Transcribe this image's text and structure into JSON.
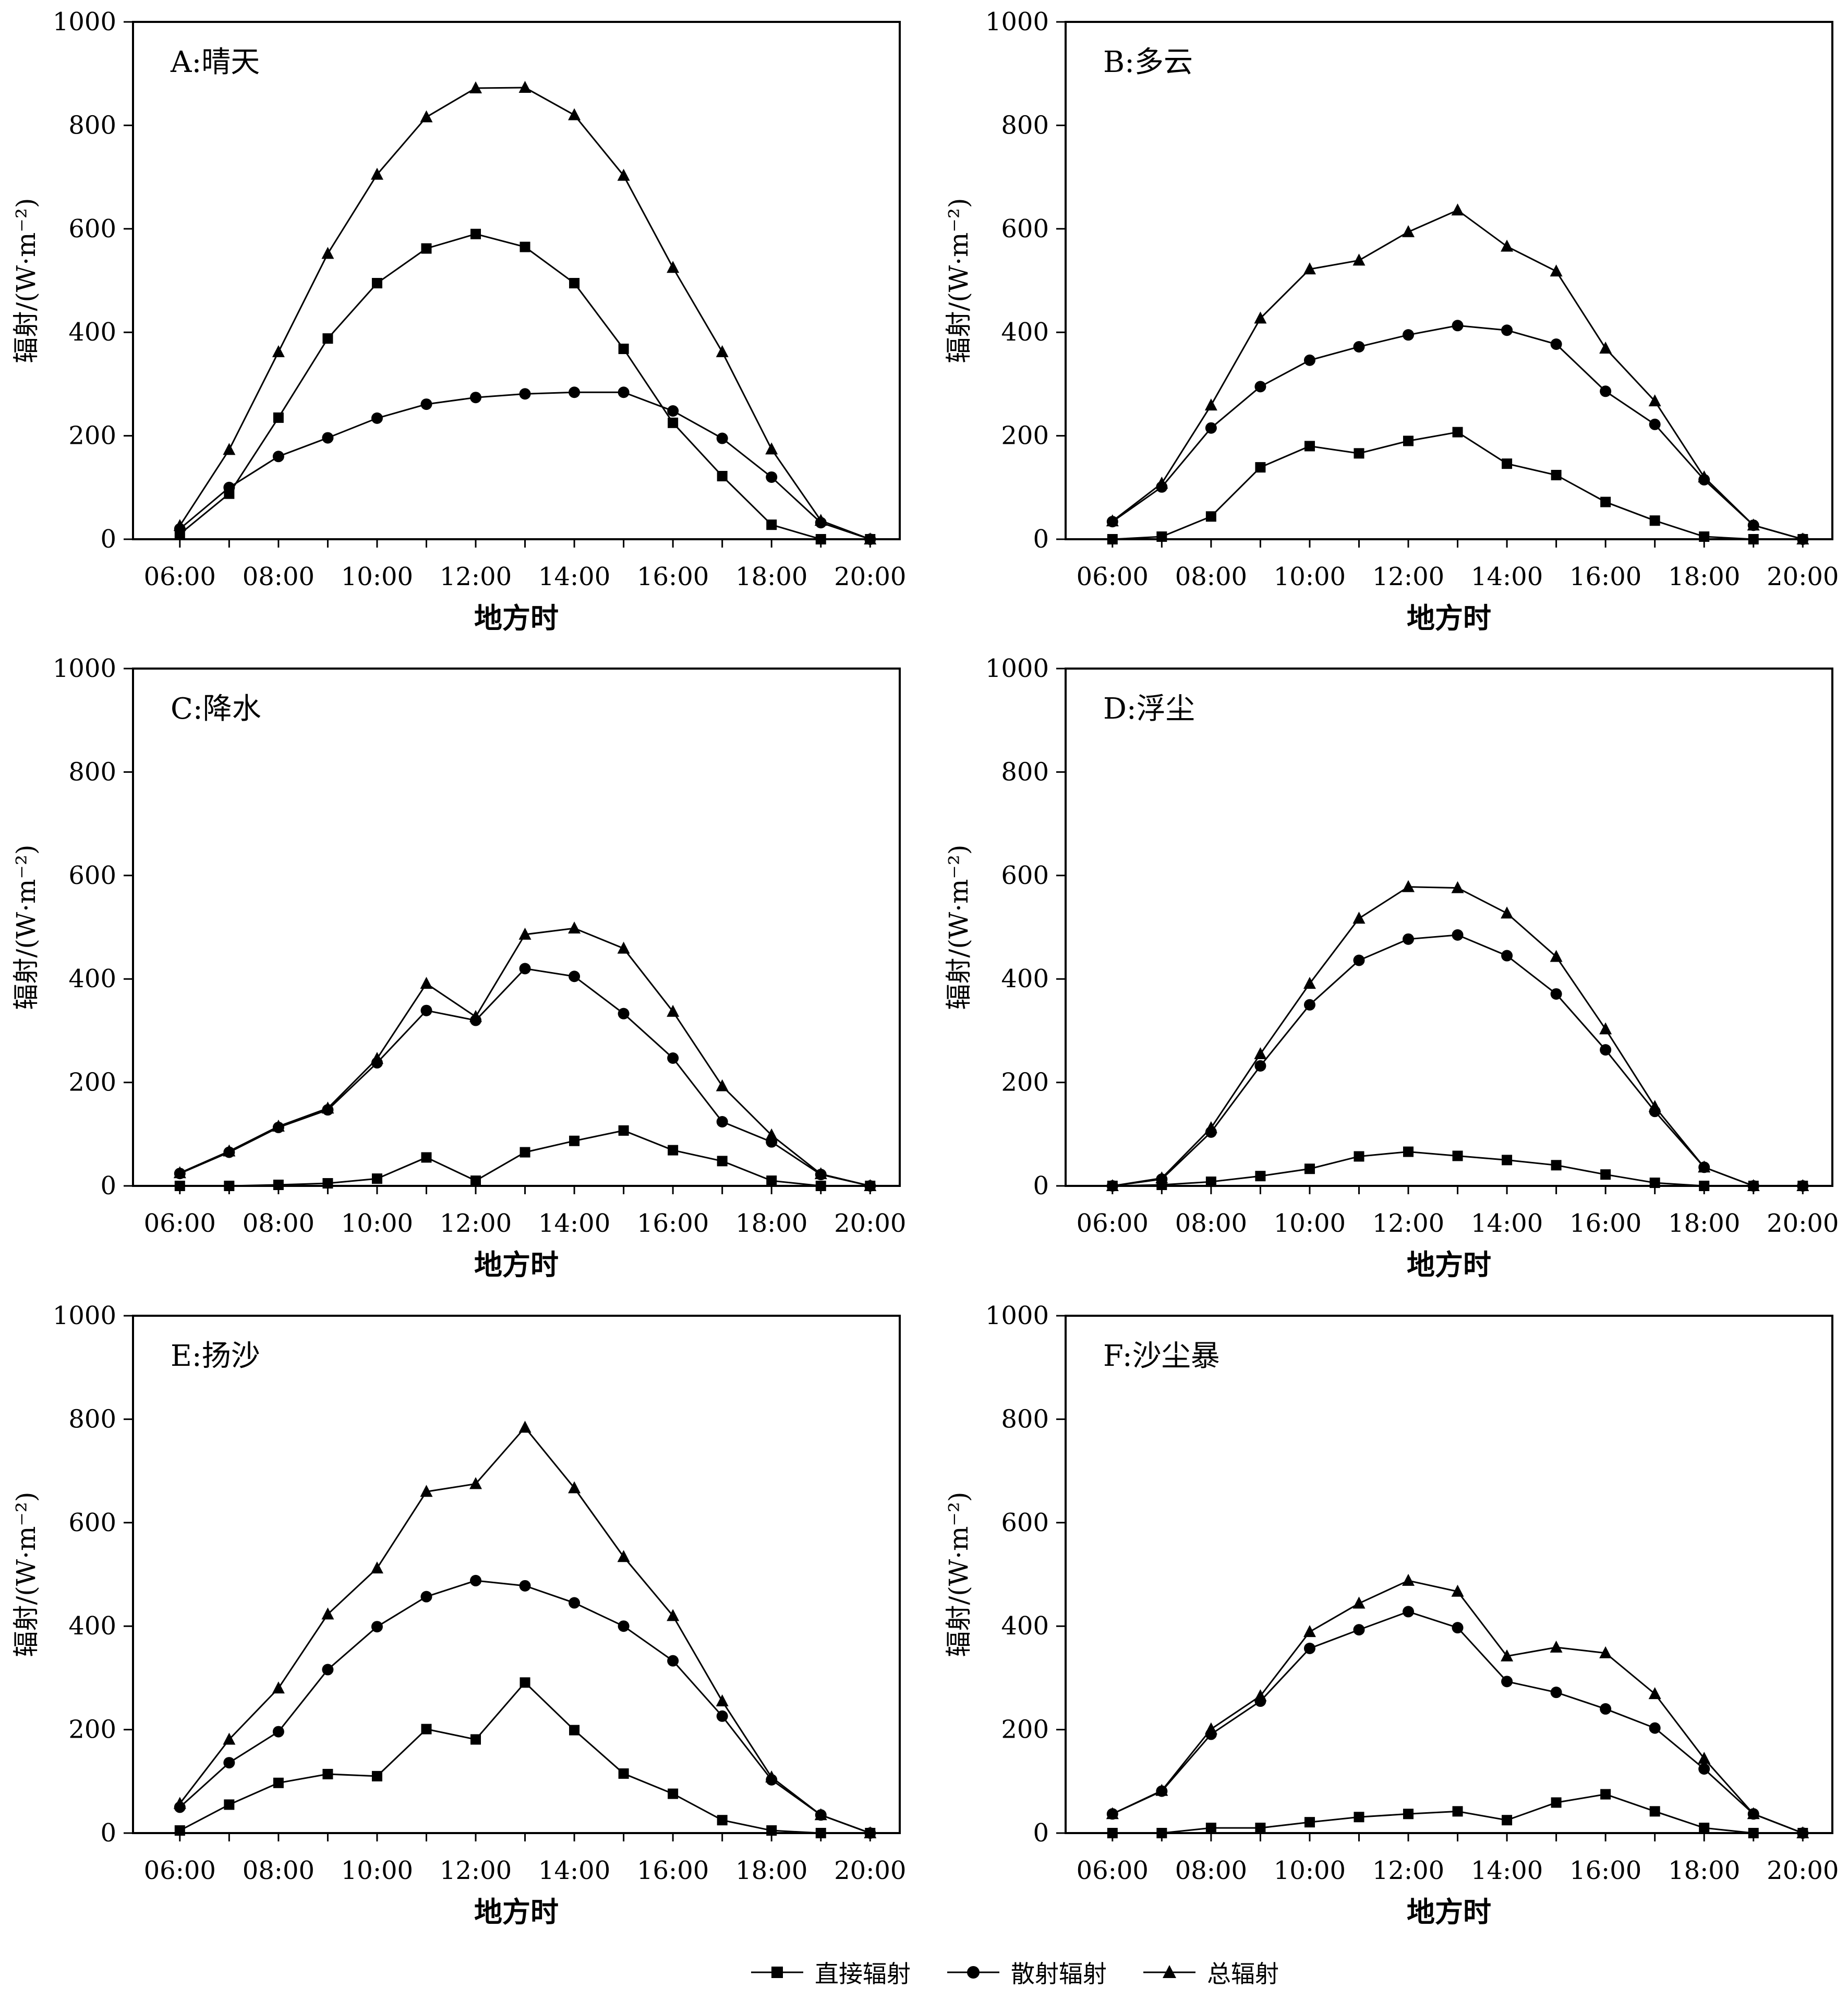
{
  "legend": {
    "direct": "直接辐射",
    "diffuse": "散射辐射",
    "total": "总辐射"
  },
  "chart_data": [
    {
      "type": "line",
      "title": "A:晴天",
      "xlabel": "地方时",
      "ylabel": "辐射/(W·m⁻²)",
      "ylim": [
        0,
        1000
      ],
      "yticks": [
        0,
        200,
        400,
        600,
        800,
        1000
      ],
      "xticks": [
        "06:00",
        "08:00",
        "10:00",
        "12:00",
        "14:00",
        "16:00",
        "18:00",
        "20:00"
      ],
      "x": [
        6,
        7,
        8,
        9,
        10,
        11,
        12,
        13,
        14,
        15,
        16,
        17,
        18,
        19,
        20
      ],
      "series": [
        {
          "name": "直接辐射",
          "marker": "square",
          "values": [
            10,
            88,
            235,
            388,
            495,
            562,
            590,
            565,
            495,
            368,
            225,
            122,
            28,
            0,
            0
          ]
        },
        {
          "name": "散射辐射",
          "marker": "circle",
          "values": [
            20,
            100,
            160,
            196,
            234,
            261,
            274,
            281,
            284,
            284,
            248,
            195,
            120,
            32,
            0
          ]
        },
        {
          "name": "总辐射",
          "marker": "triangle",
          "values": [
            26,
            173,
            362,
            552,
            705,
            816,
            872,
            873,
            820,
            703,
            525,
            362,
            174,
            36,
            0
          ]
        }
      ]
    },
    {
      "type": "line",
      "title": "B:多云",
      "xlabel": "地方时",
      "ylabel": "辐射/(W·m⁻²)",
      "ylim": [
        0,
        1000
      ],
      "yticks": [
        0,
        200,
        400,
        600,
        800,
        1000
      ],
      "xticks": [
        "06:00",
        "08:00",
        "10:00",
        "12:00",
        "14:00",
        "16:00",
        "18:00",
        "20:00"
      ],
      "x": [
        6,
        7,
        8,
        9,
        10,
        11,
        12,
        13,
        14,
        15,
        16,
        17,
        18,
        19,
        20
      ],
      "series": [
        {
          "name": "直接辐射",
          "marker": "square",
          "values": [
            0,
            5,
            44,
            139,
            180,
            166,
            190,
            207,
            146,
            124,
            72,
            36,
            5,
            0,
            0
          ]
        },
        {
          "name": "散射辐射",
          "marker": "circle",
          "values": [
            34,
            101,
            215,
            295,
            346,
            372,
            395,
            413,
            404,
            377,
            286,
            222,
            115,
            27,
            0
          ]
        },
        {
          "name": "总辐射",
          "marker": "triangle",
          "values": [
            35,
            108,
            259,
            427,
            522,
            539,
            594,
            636,
            566,
            518,
            369,
            267,
            120,
            27,
            0
          ]
        }
      ]
    },
    {
      "type": "line",
      "title": "C:降水",
      "xlabel": "地方时",
      "ylabel": "辐射/(W·m⁻²)",
      "ylim": [
        0,
        1000
      ],
      "yticks": [
        0,
        200,
        400,
        600,
        800,
        1000
      ],
      "xticks": [
        "06:00",
        "08:00",
        "10:00",
        "12:00",
        "14:00",
        "16:00",
        "18:00",
        "20:00"
      ],
      "x": [
        6,
        7,
        8,
        9,
        10,
        11,
        12,
        13,
        14,
        15,
        16,
        17,
        18,
        19,
        20
      ],
      "series": [
        {
          "name": "直接辐射",
          "marker": "square",
          "values": [
            0,
            0,
            2,
            5,
            14,
            55,
            10,
            65,
            87,
            107,
            69,
            48,
            10,
            0,
            0
          ]
        },
        {
          "name": "散射辐射",
          "marker": "circle",
          "values": [
            24,
            65,
            113,
            147,
            238,
            339,
            320,
            420,
            405,
            333,
            247,
            124,
            85,
            22,
            0
          ]
        },
        {
          "name": "总辐射",
          "marker": "triangle",
          "values": [
            25,
            67,
            115,
            150,
            246,
            391,
            327,
            486,
            498,
            459,
            337,
            193,
            98,
            23,
            0
          ]
        }
      ]
    },
    {
      "type": "line",
      "title": "D:浮尘",
      "xlabel": "地方时",
      "ylabel": "辐射/(W·m⁻²)",
      "ylim": [
        0,
        1000
      ],
      "yticks": [
        0,
        200,
        400,
        600,
        800,
        1000
      ],
      "xticks": [
        "06:00",
        "08:00",
        "10:00",
        "12:00",
        "14:00",
        "16:00",
        "18:00",
        "20:00"
      ],
      "x": [
        6,
        7,
        8,
        9,
        10,
        11,
        12,
        13,
        14,
        15,
        16,
        17,
        18,
        19,
        20
      ],
      "series": [
        {
          "name": "直接辐射",
          "marker": "square",
          "values": [
            0,
            2,
            8,
            19,
            33,
            57,
            66,
            58,
            50,
            40,
            22,
            6,
            0,
            0,
            0
          ]
        },
        {
          "name": "散射辐射",
          "marker": "circle",
          "values": [
            0,
            13,
            104,
            232,
            350,
            436,
            477,
            485,
            445,
            371,
            263,
            144,
            36,
            0,
            0
          ]
        },
        {
          "name": "总辐射",
          "marker": "triangle",
          "values": [
            0,
            15,
            112,
            255,
            391,
            517,
            578,
            576,
            527,
            443,
            303,
            153,
            36,
            0,
            0
          ]
        }
      ]
    },
    {
      "type": "line",
      "title": "E:扬沙",
      "xlabel": "地方时",
      "ylabel": "辐射/(W·m⁻²)",
      "ylim": [
        0,
        1000
      ],
      "yticks": [
        0,
        200,
        400,
        600,
        800,
        1000
      ],
      "xticks": [
        "06:00",
        "08:00",
        "10:00",
        "12:00",
        "14:00",
        "16:00",
        "18:00",
        "20:00"
      ],
      "x": [
        6,
        7,
        8,
        9,
        10,
        11,
        12,
        13,
        14,
        15,
        16,
        17,
        18,
        19,
        20
      ],
      "series": [
        {
          "name": "直接辐射",
          "marker": "square",
          "values": [
            5,
            55,
            97,
            114,
            110,
            201,
            181,
            291,
            199,
            115,
            76,
            25,
            5,
            0,
            0
          ]
        },
        {
          "name": "散射辐射",
          "marker": "circle",
          "values": [
            50,
            136,
            196,
            316,
            399,
            457,
            488,
            478,
            445,
            400,
            333,
            226,
            103,
            35,
            0
          ]
        },
        {
          "name": "总辐射",
          "marker": "triangle",
          "values": [
            57,
            181,
            280,
            423,
            512,
            660,
            675,
            784,
            667,
            534,
            420,
            255,
            108,
            35,
            0
          ]
        }
      ]
    },
    {
      "type": "line",
      "title": "F:沙尘暴",
      "xlabel": "地方时",
      "ylabel": "辐射/(W·m⁻²)",
      "ylim": [
        0,
        1000
      ],
      "yticks": [
        0,
        200,
        400,
        600,
        800,
        1000
      ],
      "xticks": [
        "06:00",
        "08:00",
        "10:00",
        "12:00",
        "14:00",
        "16:00",
        "18:00",
        "20:00"
      ],
      "x": [
        6,
        7,
        8,
        9,
        10,
        11,
        12,
        13,
        14,
        15,
        16,
        17,
        18,
        19,
        20
      ],
      "series": [
        {
          "name": "直接辐射",
          "marker": "square",
          "values": [
            0,
            0,
            10,
            10,
            21,
            31,
            37,
            42,
            25,
            59,
            75,
            42,
            10,
            0,
            0
          ]
        },
        {
          "name": "散射辐射",
          "marker": "circle",
          "values": [
            37,
            81,
            191,
            255,
            357,
            393,
            428,
            397,
            293,
            272,
            240,
            203,
            124,
            37,
            0
          ]
        },
        {
          "name": "总辐射",
          "marker": "triangle",
          "values": [
            37,
            82,
            201,
            265,
            389,
            444,
            488,
            467,
            342,
            359,
            348,
            269,
            144,
            37,
            0
          ]
        }
      ]
    }
  ]
}
